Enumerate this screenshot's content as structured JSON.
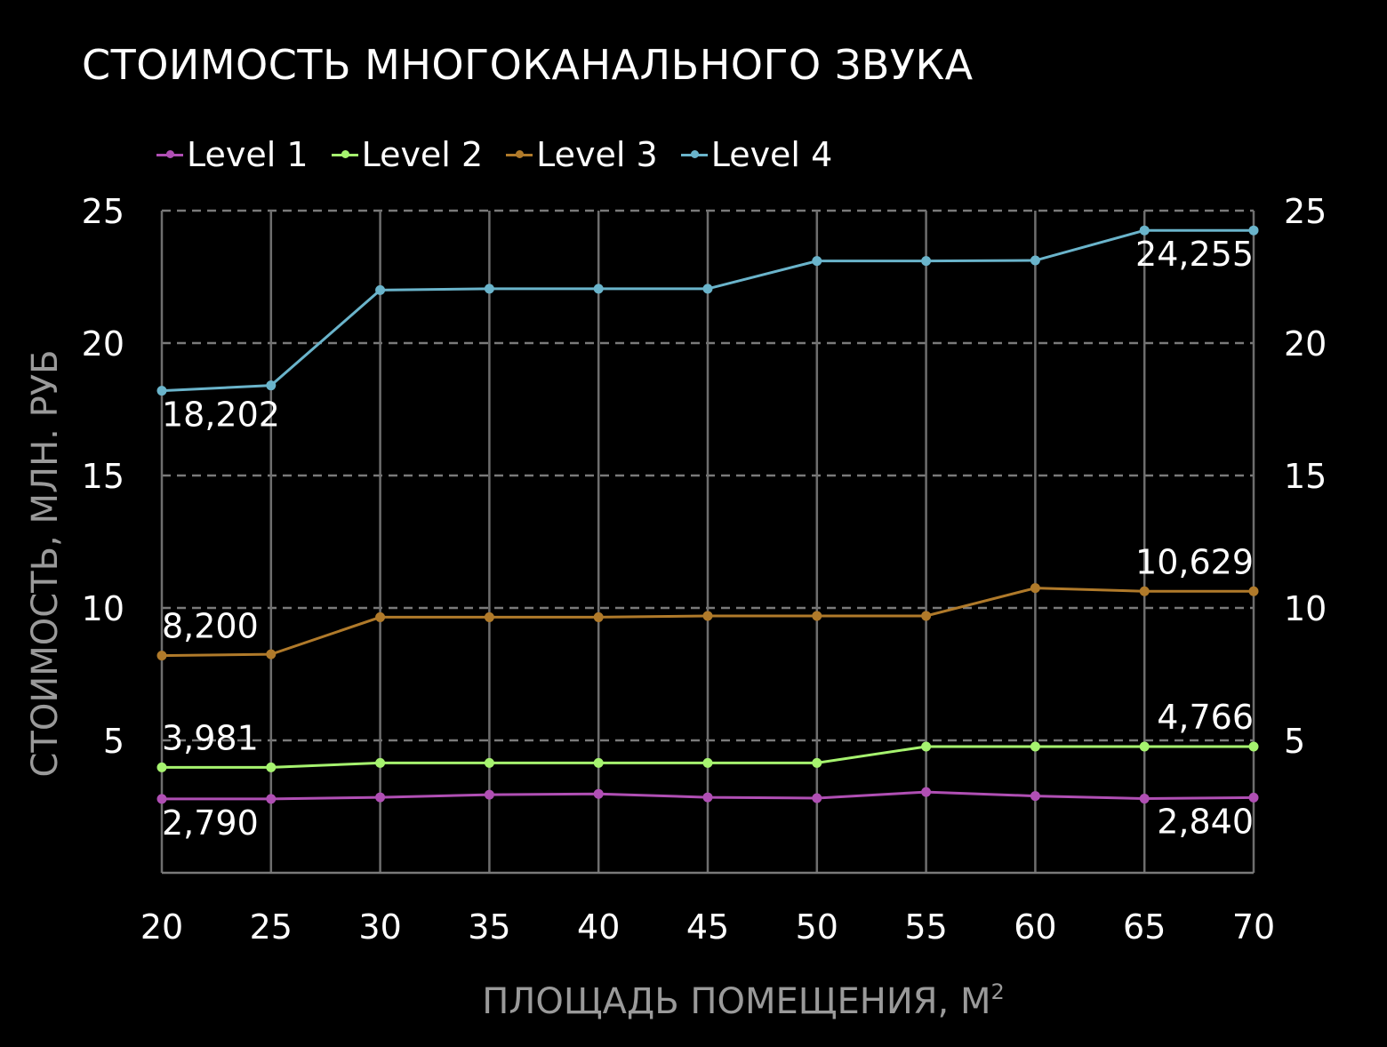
{
  "chart_data": {
    "type": "line",
    "title": "СТОИМОСТЬ МНОГОКАНАЛЬНОГО ЗВУКА",
    "xlabel": "ПЛОЩАДЬ ПОМЕЩЕНИЯ, М",
    "xlabel_superscript": "2",
    "ylabel": "СТОИМОСТЬ, МЛН. РУБ",
    "x": [
      20,
      25,
      30,
      35,
      40,
      45,
      50,
      55,
      60,
      65,
      70
    ],
    "x_tick_labels": [
      "20",
      "25",
      "30",
      "35",
      "40",
      "45",
      "50",
      "55",
      "60",
      "65",
      "70"
    ],
    "ylim": [
      0,
      25
    ],
    "y_ticks": [
      5,
      10,
      15,
      20,
      25
    ],
    "y_tick_labels": [
      "5",
      "10",
      "15",
      "20",
      "25"
    ],
    "grid": true,
    "legend_position": "top-left",
    "series": [
      {
        "name": "Level 1",
        "color": "#b04fb4",
        "values": [
          2.79,
          2.79,
          2.85,
          2.95,
          2.98,
          2.85,
          2.82,
          3.05,
          2.9,
          2.8,
          2.84
        ]
      },
      {
        "name": "Level 2",
        "color": "#a6f36f",
        "values": [
          3.981,
          3.981,
          4.15,
          4.15,
          4.15,
          4.15,
          4.15,
          4.766,
          4.766,
          4.766,
          4.766
        ]
      },
      {
        "name": "Level 3",
        "color": "#b07a2a",
        "values": [
          8.2,
          8.25,
          9.65,
          9.65,
          9.65,
          9.7,
          9.7,
          9.7,
          10.75,
          10.629,
          10.629
        ]
      },
      {
        "name": "Level 4",
        "color": "#6ab4cb",
        "values": [
          18.202,
          18.4,
          22.0,
          22.05,
          22.05,
          22.05,
          23.1,
          23.1,
          23.12,
          24.255,
          24.255
        ]
      }
    ],
    "annotations": [
      {
        "text": "2,790",
        "series": 0,
        "index": 0
      },
      {
        "text": "2,840",
        "series": 0,
        "index": 10
      },
      {
        "text": "3,981",
        "series": 1,
        "index": 0
      },
      {
        "text": "4,766",
        "series": 1,
        "index": 10
      },
      {
        "text": "8,200",
        "series": 2,
        "index": 0
      },
      {
        "text": "10,629",
        "series": 2,
        "index": 10
      },
      {
        "text": "18,202",
        "series": 3,
        "index": 0
      },
      {
        "text": "24,255",
        "series": 3,
        "index": 10
      }
    ]
  }
}
